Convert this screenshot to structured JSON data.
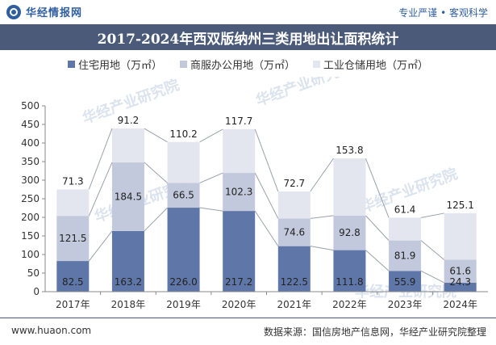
{
  "header": {
    "brand": "华经情报网",
    "slogan": "专业严谨 • 客观科学",
    "title": "2017-2024年西双版纳州三类用地出让面积统计"
  },
  "footer": {
    "website": "www.huaon.com",
    "source": "数据来源：国信房地产信息网，华经产业研究院整理"
  },
  "watermark": "华经产业研究院",
  "colors": {
    "title_band": "#4a5a78",
    "residential": "#5f77a8",
    "commercial": "#c3c9dc",
    "industrial": "#e3e5ef"
  },
  "chart_data": {
    "type": "bar",
    "stacked": true,
    "title": "2017-2024年西双版纳州三类用地出让面积统计",
    "categories": [
      "2017年",
      "2018年",
      "2019年",
      "2020年",
      "2021年",
      "2022年",
      "2023年",
      "2024年"
    ],
    "series": [
      {
        "name": "住宅用地（万㎡）",
        "color": "#5f77a8",
        "values": [
          82.5,
          163.2,
          226.0,
          217.2,
          122.5,
          111.8,
          55.9,
          24.3
        ]
      },
      {
        "name": "商服办公用地（万㎡）",
        "color": "#c3c9dc",
        "values": [
          121.5,
          184.5,
          66.5,
          102.3,
          74.6,
          92.8,
          81.9,
          61.6
        ]
      },
      {
        "name": "工业仓储用地（万㎡）",
        "color": "#e3e5ef",
        "values": [
          71.3,
          91.2,
          110.2,
          117.7,
          72.7,
          153.8,
          61.4,
          125.1
        ]
      }
    ],
    "value_labels": [
      [
        "82.5",
        "163.2",
        "226.0",
        "217.2",
        "122.5",
        "111.8",
        "55.9",
        "24.3"
      ],
      [
        "121.5",
        "184.5",
        "66.5",
        "102.3",
        "74.6",
        "92.8",
        "81.9",
        "61.6"
      ],
      [
        "71.3",
        "91.2",
        "110.2",
        "117.7",
        "72.7",
        "153.8",
        "61.4",
        "125.1"
      ]
    ],
    "yticks": [
      "0",
      "50",
      "100",
      "150",
      "200",
      "250",
      "300",
      "350",
      "400",
      "450",
      "500"
    ],
    "ylim": [
      0,
      500
    ],
    "legend": "top-center",
    "grid": false,
    "connector_lines": true
  }
}
